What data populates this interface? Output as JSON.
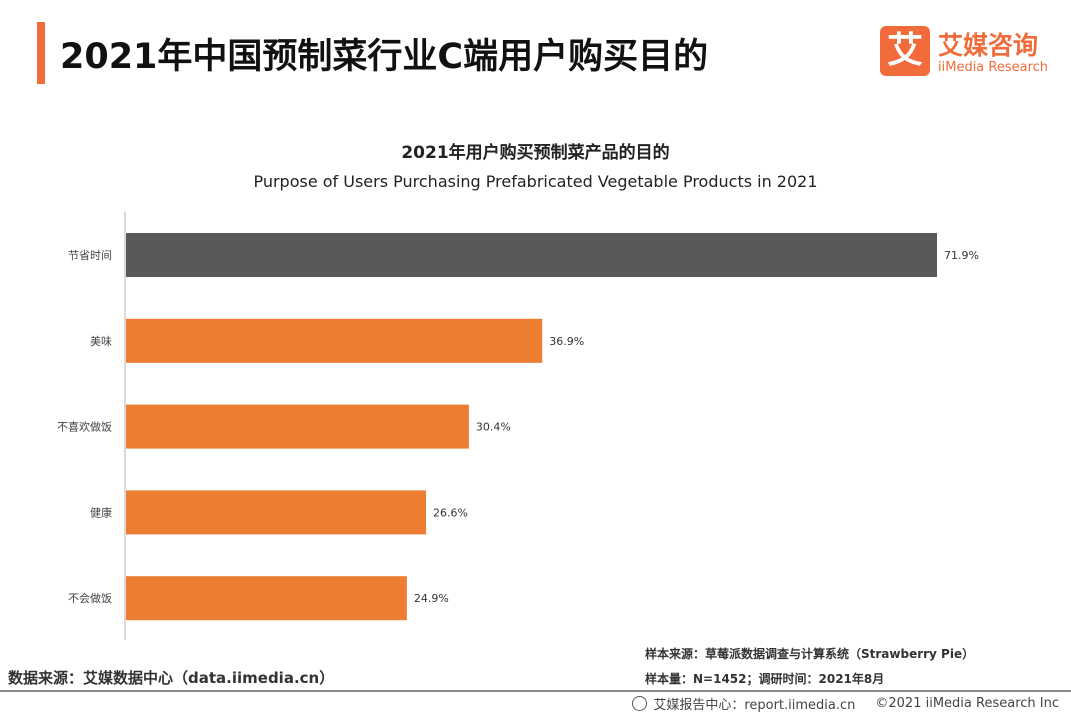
{
  "header": {
    "title": "2021年中国预制菜行业C端用户购买目的",
    "logo_cn": "艾媒咨询",
    "logo_en": "iiMedia Research",
    "logo_mark": "艾"
  },
  "chart_data": {
    "type": "bar",
    "orientation": "horizontal",
    "title": "2021年用户购买预制菜产品的目的",
    "subtitle": "Purpose of Users Purchasing Prefabricated Vegetable Products in 2021",
    "categories": [
      "节省时间",
      "美味",
      "不喜欢做饭",
      "健康",
      "不会做饭"
    ],
    "values": [
      71.9,
      36.9,
      30.4,
      26.6,
      24.9
    ],
    "labels": [
      "71.9%",
      "36.9%",
      "30.4%",
      "26.6%",
      "24.9%"
    ],
    "colors": [
      "#595959",
      "#ed7d31",
      "#ed7d31",
      "#ed7d31",
      "#ed7d31"
    ],
    "xlim": [
      0,
      100
    ],
    "grid": false
  },
  "footer": {
    "source": "数据来源：艾媒数据中心（data.iimedia.cn）",
    "sample_source": "样本来源：草莓派数据调查与计算系统（Strawberry Pie）",
    "sample_size": "样本量：N=1452；调研时间：2021年8月",
    "report": "艾媒报告中心：report.iimedia.cn",
    "copyright": "©2021  iiMedia Research  Inc"
  }
}
